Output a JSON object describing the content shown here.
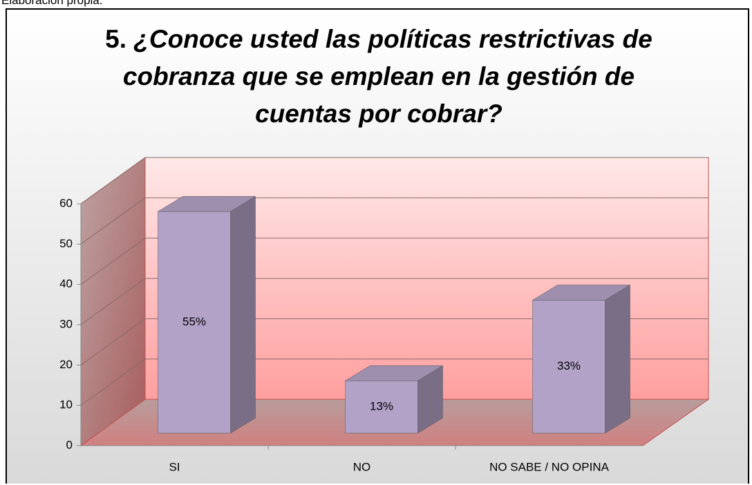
{
  "source_note": "Elaboración propia.",
  "chart_data": {
    "type": "bar3d",
    "title_number": "5.",
    "title": "¿Conoce usted las políticas restrictivas de cobranza que se emplean en la gestión de cuentas por cobrar?",
    "categories": [
      "SI",
      "NO",
      "NO SABE / NO OPINA"
    ],
    "values": [
      55,
      13,
      33
    ],
    "value_labels": [
      "55%",
      "13%",
      "33%"
    ],
    "color": "#b3a2c7",
    "ylim": [
      0,
      60
    ],
    "yticks": [
      0,
      10,
      20,
      30,
      40,
      50,
      60
    ],
    "grid": true
  }
}
